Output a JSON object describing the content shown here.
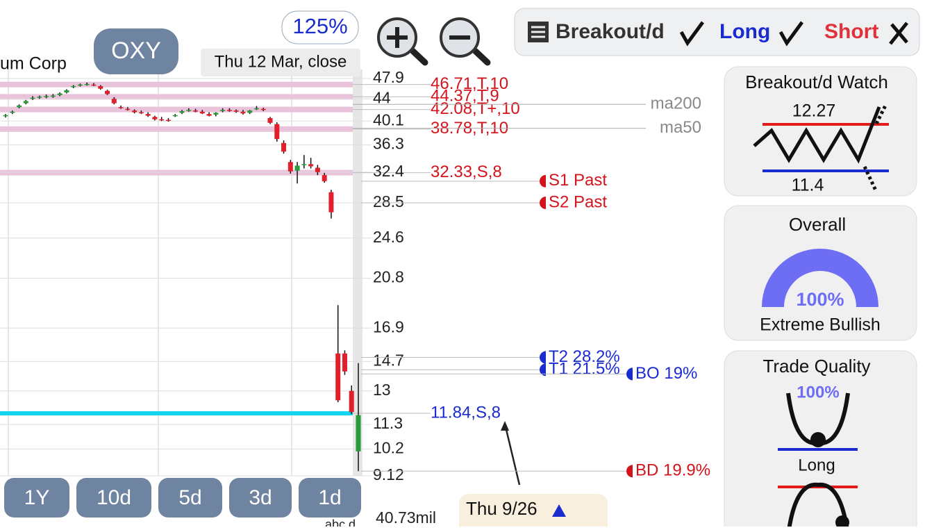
{
  "header": {
    "company": "um Corp",
    "ticker": "OXY",
    "zoom": "125%",
    "date": "Thu 12 Mar, close"
  },
  "toolbar": {
    "strategy": "Breakout/d",
    "long": "Long",
    "short": "Short"
  },
  "price_chart": {
    "type": "candlestick",
    "yscale": "log",
    "ylim": [
      9.12,
      47.9
    ],
    "yticks": [
      47.9,
      44,
      40.1,
      36.3,
      32.4,
      28.5,
      24.6,
      20.8,
      16.9,
      14.7,
      13,
      11.3,
      10.2,
      9.12
    ],
    "up_color": "#2a9a3a",
    "down_color": "#e0212b",
    "candles": [
      {
        "o": 41.0,
        "h": 41.3,
        "l": 40.7,
        "c": 41.1
      },
      {
        "o": 41.5,
        "h": 41.9,
        "l": 41.3,
        "c": 41.7
      },
      {
        "o": 42.5,
        "h": 43.0,
        "l": 42.3,
        "c": 42.8
      },
      {
        "o": 43.2,
        "h": 43.8,
        "l": 43.0,
        "c": 43.6
      },
      {
        "o": 44.0,
        "h": 44.5,
        "l": 43.8,
        "c": 44.2
      },
      {
        "o": 44.3,
        "h": 44.6,
        "l": 44.0,
        "c": 44.4
      },
      {
        "o": 44.4,
        "h": 44.8,
        "l": 44.1,
        "c": 44.5
      },
      {
        "o": 44.5,
        "h": 44.9,
        "l": 44.2,
        "c": 44.6
      },
      {
        "o": 44.7,
        "h": 45.2,
        "l": 44.5,
        "c": 45.0
      },
      {
        "o": 45.2,
        "h": 45.8,
        "l": 45.0,
        "c": 45.6
      },
      {
        "o": 46.3,
        "h": 46.6,
        "l": 46.0,
        "c": 46.4
      },
      {
        "o": 46.6,
        "h": 46.9,
        "l": 46.3,
        "c": 46.7
      },
      {
        "o": 46.8,
        "h": 47.1,
        "l": 46.5,
        "c": 46.8
      },
      {
        "o": 46.7,
        "h": 47.0,
        "l": 46.4,
        "c": 46.5
      },
      {
        "o": 46.4,
        "h": 46.6,
        "l": 45.7,
        "c": 45.9
      },
      {
        "o": 45.5,
        "h": 45.7,
        "l": 44.7,
        "c": 44.9
      },
      {
        "o": 44.0,
        "h": 44.3,
        "l": 43.0,
        "c": 43.2
      },
      {
        "o": 42.5,
        "h": 42.8,
        "l": 42.2,
        "c": 42.4
      },
      {
        "o": 42.2,
        "h": 42.5,
        "l": 41.9,
        "c": 42.1
      },
      {
        "o": 41.9,
        "h": 42.1,
        "l": 41.4,
        "c": 41.6
      },
      {
        "o": 41.6,
        "h": 41.9,
        "l": 41.3,
        "c": 41.5
      },
      {
        "o": 41.3,
        "h": 41.6,
        "l": 40.8,
        "c": 41.0
      },
      {
        "o": 40.8,
        "h": 41.0,
        "l": 40.2,
        "c": 40.4
      },
      {
        "o": 40.4,
        "h": 40.8,
        "l": 40.1,
        "c": 40.3
      },
      {
        "o": 40.3,
        "h": 40.6,
        "l": 40.0,
        "c": 40.2
      },
      {
        "o": 41.0,
        "h": 41.3,
        "l": 40.8,
        "c": 41.1
      },
      {
        "o": 41.5,
        "h": 42.0,
        "l": 41.3,
        "c": 41.8
      },
      {
        "o": 42.0,
        "h": 42.3,
        "l": 41.7,
        "c": 42.0
      },
      {
        "o": 41.9,
        "h": 42.2,
        "l": 41.6,
        "c": 41.8
      },
      {
        "o": 41.7,
        "h": 42.0,
        "l": 41.3,
        "c": 41.4
      },
      {
        "o": 41.3,
        "h": 41.6,
        "l": 40.9,
        "c": 41.0
      },
      {
        "o": 41.2,
        "h": 41.6,
        "l": 40.9,
        "c": 41.5
      },
      {
        "o": 41.8,
        "h": 42.3,
        "l": 41.6,
        "c": 42.0
      },
      {
        "o": 42.0,
        "h": 42.3,
        "l": 41.7,
        "c": 41.9
      },
      {
        "o": 41.9,
        "h": 42.1,
        "l": 41.5,
        "c": 41.7
      },
      {
        "o": 41.7,
        "h": 42.0,
        "l": 41.2,
        "c": 41.4
      },
      {
        "o": 41.5,
        "h": 42.0,
        "l": 41.3,
        "c": 41.9
      },
      {
        "o": 42.2,
        "h": 42.7,
        "l": 42.0,
        "c": 42.3
      },
      {
        "o": 42.2,
        "h": 42.4,
        "l": 41.8,
        "c": 42.0
      },
      {
        "o": 40.6,
        "h": 40.8,
        "l": 39.6,
        "c": 39.8
      },
      {
        "o": 39.6,
        "h": 39.9,
        "l": 36.8,
        "c": 37.2
      },
      {
        "o": 36.6,
        "h": 37.0,
        "l": 35.0,
        "c": 35.3
      },
      {
        "o": 33.8,
        "h": 34.1,
        "l": 32.2,
        "c": 32.5
      },
      {
        "o": 32.6,
        "h": 33.8,
        "l": 30.9,
        "c": 33.3
      },
      {
        "o": 33.4,
        "h": 34.8,
        "l": 32.9,
        "c": 33.5
      },
      {
        "o": 33.5,
        "h": 34.4,
        "l": 32.9,
        "c": 33.2
      },
      {
        "o": 33.0,
        "h": 33.4,
        "l": 32.0,
        "c": 32.4
      },
      {
        "o": 32.0,
        "h": 32.3,
        "l": 31.0,
        "c": 31.2
      },
      {
        "o": 29.8,
        "h": 30.1,
        "l": 26.7,
        "c": 27.4
      },
      {
        "o": 15.2,
        "h": 18.6,
        "l": 12.4,
        "c": 12.5
      },
      {
        "o": 15.2,
        "h": 15.4,
        "l": 13.9,
        "c": 14.1
      },
      {
        "o": 13.0,
        "h": 13.3,
        "l": 11.8,
        "c": 11.9
      },
      {
        "o": 10.1,
        "h": 14.6,
        "l": 9.3,
        "c": 11.75
      }
    ],
    "levels": [
      {
        "label": "46.71,T,10",
        "value": 46.71
      },
      {
        "label": "44.37,T,9",
        "value": 44.37
      },
      {
        "label": "42.08,T+,10",
        "value": 42.08
      },
      {
        "label": "38.78,T,10",
        "value": 38.78
      },
      {
        "label": "32.33,S,8",
        "value": 32.33
      }
    ],
    "level_color": "#e8c3da",
    "level_text_color": "#d4141c",
    "support": {
      "label": "11.84,S,8",
      "value": 11.84,
      "color": "#12d4ee",
      "text_color": "#1a2bd0"
    },
    "moving_averages": [
      {
        "label": "ma200",
        "value": 43.0
      },
      {
        "label": "ma50",
        "value": 38.9
      }
    ],
    "markers": [
      {
        "label": "S1 Past",
        "value": 31.2,
        "color": "#d4141c",
        "column": 0
      },
      {
        "label": "S2 Past",
        "value": 28.5,
        "color": "#d4141c",
        "column": 0
      },
      {
        "label": "T2 28.2%",
        "value": 14.95,
        "color": "#1a2bd0",
        "column": 0
      },
      {
        "label": "T1 21.5%",
        "value": 14.2,
        "color": "#1a2bd0",
        "column": 0
      },
      {
        "label": "BO 19%",
        "value": 13.95,
        "color": "#1a2bd0",
        "column": 1
      },
      {
        "label": "BD 19.9%",
        "value": 9.3,
        "color": "#d4141c",
        "column": 1
      }
    ],
    "volume": "40.73mil",
    "volume_note": "abc d"
  },
  "periods": [
    "1Y",
    "10d",
    "5d",
    "3d",
    "1d"
  ],
  "event": {
    "label": "Thu 9/26"
  },
  "watch": {
    "title": "Breakout/d Watch",
    "upper": 12.27,
    "lower": 11.4
  },
  "overall": {
    "title": "Overall",
    "value": "100%",
    "rating": "Extreme Bullish"
  },
  "trade_quality": {
    "title": "Trade Quality",
    "value": "100%",
    "side": "Long"
  }
}
